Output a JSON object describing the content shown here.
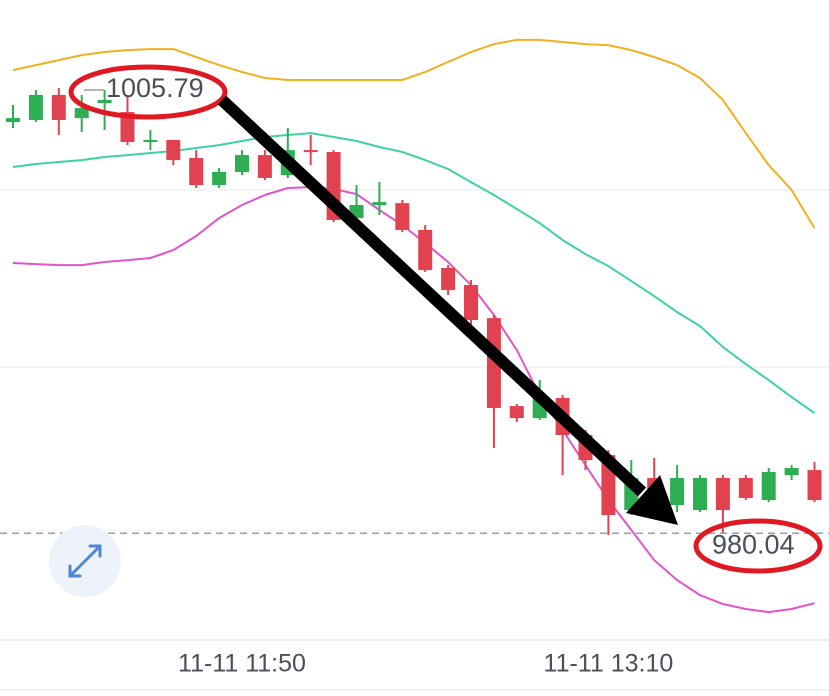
{
  "chart_data": {
    "type": "candlestick",
    "categories": [
      null,
      null,
      null,
      null,
      null,
      null,
      null,
      null,
      null,
      null,
      "11-11 11:50",
      null,
      null,
      null,
      null,
      null,
      null,
      null,
      null,
      null,
      null,
      null,
      null,
      null,
      null,
      null,
      "11-11 13:10",
      null,
      null,
      null,
      null,
      null,
      null,
      null,
      null,
      null
    ],
    "open": [
      1003.93,
      1004.05,
      1005.5,
      1004.16,
      1005.03,
      1004.51,
      1002.77,
      1002.89,
      1001.84,
      1000.27,
      1001.03,
      1002.01,
      1000.85,
      1002.3,
      1002.19,
      998.35,
      999.11,
      999.22,
      997.66,
      995.45,
      994.46,
      992.54,
      987.43,
      986.73,
      987.9,
      985.75,
      984.58,
      981.39,
      983.25,
      981.68,
      981.39,
      983.25,
      983.25,
      981.97,
      983.42,
      983.71
    ],
    "high": [
      1004.92,
      1005.79,
      1005.91,
      1005.5,
      1005.79,
      1005.5,
      1003.47,
      1002.89,
      1002.3,
      1001.26,
      1002.3,
      1002.3,
      1003.58,
      1003.18,
      1002.3,
      1000.27,
      1000.44,
      999.4,
      997.95,
      995.62,
      994.75,
      992.72,
      987.55,
      988.94,
      988.07,
      986.04,
      984.87,
      984.29,
      984.41,
      984.0,
      983.42,
      983.42,
      983.42,
      983.83,
      984.0,
      984.18
    ],
    "low": [
      1003.58,
      1003.93,
      1003.18,
      1003.35,
      1003.47,
      1002.59,
      1002.3,
      1001.43,
      1000.1,
      1000.1,
      1000.85,
      1000.56,
      1000.68,
      1001.43,
      998.12,
      998.12,
      998.53,
      997.54,
      995.22,
      993.88,
      992.14,
      984.99,
      986.5,
      986.62,
      983.42,
      983.71,
      979.94,
      981.1,
      981.39,
      981.27,
      981.27,
      980.04,
      981.97,
      981.85,
      983.13,
      981.85
    ],
    "close": [
      1004.16,
      1005.5,
      1004.05,
      1004.74,
      1005.21,
      1002.77,
      1002.89,
      1001.72,
      1000.27,
      1001.03,
      1002.01,
      1000.68,
      1002.3,
      1002.19,
      998.24,
      999.11,
      999.28,
      997.66,
      995.33,
      994.17,
      992.43,
      987.32,
      986.73,
      988.07,
      985.75,
      984.29,
      981.1,
      983.25,
      981.68,
      983.25,
      983.25,
      981.39,
      982.09,
      983.6,
      983.83,
      981.97
    ],
    "up_color": "#2eae52",
    "down_color": "#e2424f",
    "bands": {
      "upper": {
        "color": "#f0b020",
        "values": [
          1006.95,
          1007.24,
          1007.53,
          1007.82,
          1008.0,
          1008.11,
          1008.17,
          1008.17,
          1007.71,
          1007.24,
          1006.84,
          1006.49,
          1006.37,
          1006.37,
          1006.37,
          1006.37,
          1006.37,
          1006.37,
          1006.84,
          1007.42,
          1008.0,
          1008.46,
          1008.7,
          1008.7,
          1008.58,
          1008.46,
          1008.4,
          1008.11,
          1007.71,
          1007.24,
          1006.49,
          1005.21,
          1003.29,
          1001.43,
          999.98,
          997.77
        ]
      },
      "middle": {
        "color": "#3fd0a6",
        "values": [
          1001.32,
          1001.49,
          1001.61,
          1001.72,
          1001.9,
          1002.01,
          1002.13,
          1002.25,
          1002.42,
          1002.59,
          1002.83,
          1003.06,
          1003.18,
          1003.29,
          1003.06,
          1002.83,
          1002.48,
          1002.19,
          1001.72,
          1001.2,
          1000.44,
          999.69,
          998.88,
          998.06,
          997.08,
          996.26,
          995.56,
          994.69,
          993.82,
          992.89,
          992.08,
          990.86,
          989.87,
          988.94,
          987.95,
          987.02
        ]
      },
      "lower": {
        "color": "#e055cc",
        "values": [
          995.74,
          995.68,
          995.62,
          995.62,
          995.8,
          995.91,
          996.03,
          996.49,
          997.31,
          998.35,
          999.11,
          999.69,
          1000.1,
          1000.15,
          1000.04,
          999.75,
          998.82,
          997.95,
          996.9,
          995.8,
          994.46,
          992.72,
          990.68,
          988.07,
          986.04,
          984.0,
          981.97,
          980.23,
          978.48,
          977.32,
          976.45,
          975.93,
          975.64,
          975.46,
          975.64,
          975.98
        ]
      }
    },
    "ylim": [
      973.84,
      1011.02
    ],
    "high_label": 1005.79,
    "low_label": 980.04
  }
}
